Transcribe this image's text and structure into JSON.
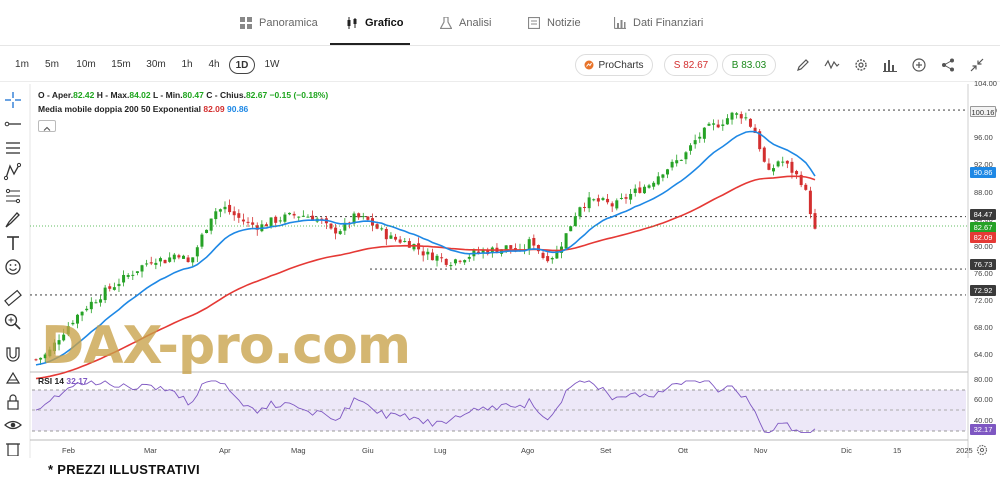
{
  "nav": {
    "tabs": [
      {
        "label": "Panoramica",
        "icon": "grid-icon"
      },
      {
        "label": "Grafico",
        "icon": "candles-icon"
      },
      {
        "label": "Analisi",
        "icon": "flask-icon"
      },
      {
        "label": "Notizie",
        "icon": "news-icon"
      },
      {
        "label": "Dati Finanziari",
        "icon": "chart-icon"
      }
    ],
    "active": "Grafico"
  },
  "toolbar": {
    "timeframes": [
      "1m",
      "5m",
      "10m",
      "15m",
      "30m",
      "1h",
      "4h",
      "1D",
      "1W"
    ],
    "selected": "1D",
    "procharts": "ProCharts",
    "sell_label": "S 82.67",
    "buy_label": "B 83.03"
  },
  "legend": {
    "ohlc_prefix": "O - Aper.",
    "open": "82.42",
    "high_prefix": "H - Max.",
    "high": "84.02",
    "low_prefix": "L - Min.",
    "low": "80.47",
    "close_prefix": "C - Chius.",
    "close": "82.67",
    "change": "−0.15 (−0.18%)",
    "ma_label": "Media mobile doppia 200 50 Exponential",
    "ma200": "82.09",
    "ma50": "90.86",
    "rsi_label": "RSI 14",
    "rsi": "32.17"
  },
  "watermark": "DAX-pro.com",
  "footer": "* PREZZI ILLUSTRATIVI",
  "colors": {
    "up": "#26a226",
    "down": "#d32f2f",
    "ma50": "#1e88e5",
    "ma200": "#e53935",
    "rsi": "#7e57c2"
  },
  "chart_data": {
    "type": "candlestick",
    "x_labels": [
      "Feb",
      "Mar",
      "Apr",
      "Mag",
      "Giu",
      "Lug",
      "Ago",
      "Set",
      "Ott",
      "Nov",
      "Dic",
      "15",
      "2025"
    ],
    "y_ticks": [
      64,
      68,
      72,
      76,
      80,
      84,
      88,
      92,
      96,
      100,
      104
    ],
    "ylim": [
      62,
      104
    ],
    "price_tags": [
      {
        "value": "100.16",
        "style": "light"
      },
      {
        "value": "90.86",
        "style": "blue"
      },
      {
        "value": "84.47",
        "style": "dark"
      },
      {
        "value": "82.67",
        "style": "green"
      },
      {
        "value": "82.09",
        "style": "red"
      },
      {
        "value": "76.73",
        "style": "dark"
      },
      {
        "value": "72.92",
        "style": "dark"
      }
    ],
    "levels": [
      100.16,
      84.47,
      76.73,
      72.92
    ],
    "rsi": {
      "ticks": [
        "80.00",
        "60.00",
        "40.00"
      ],
      "overbought": 70,
      "oversold": 30,
      "last": "32.17"
    },
    "close_series": [
      63.4,
      64.2,
      66.8,
      69.0,
      70.8,
      72.2,
      73.6,
      74.8,
      76.0,
      77.2,
      78.3,
      78.0,
      79.2,
      77.4,
      81.3,
      85.2,
      85.7,
      84.4,
      83.4,
      83.0,
      83.8,
      84.3,
      84.7,
      84.6,
      84.0,
      82.3,
      82.7,
      84.4,
      84.0,
      82.6,
      81.3,
      80.9,
      80.3,
      78.9,
      78.5,
      77.8,
      78.4,
      78.9,
      79.4,
      79.6,
      80.0,
      79.0,
      81.1,
      78.4,
      78.8,
      82.1,
      86.1,
      86.8,
      86.6,
      86.0,
      87.3,
      88.4,
      89.3,
      91.1,
      92.2,
      93.6,
      96.0,
      97.5,
      98.3,
      99.5,
      99.4,
      96.7,
      90.5,
      93.0,
      91.3,
      89.4,
      82.67
    ]
  }
}
